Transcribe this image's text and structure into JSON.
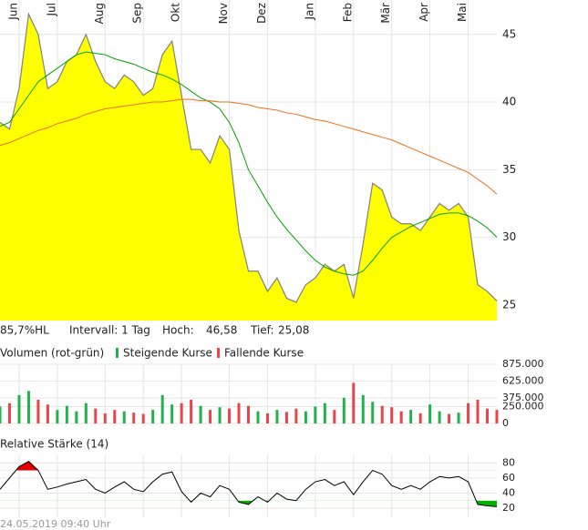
{
  "chart_data": [
    {
      "type": "area",
      "categories": [
        null,
        null,
        "Jun",
        null,
        null,
        null,
        "Jul",
        null,
        null,
        null,
        null,
        "Aug",
        null,
        null,
        null,
        "Sep",
        null,
        null,
        null,
        "Okt",
        null,
        null,
        null,
        null,
        "Nov",
        null,
        null,
        null,
        "Dez",
        null,
        null,
        null,
        null,
        "Jan",
        null,
        null,
        null,
        "Feb",
        null,
        null,
        null,
        "Mär",
        null,
        null,
        null,
        "Apr",
        null,
        null,
        null,
        "Mai",
        null,
        null,
        null
      ],
      "series": [
        {
          "color": "#ffff00",
          "edge_color": "#808080",
          "values": [
            38.5,
            38,
            41,
            46.5,
            45,
            41,
            41.5,
            43,
            43.5,
            45,
            43,
            41.5,
            41,
            42,
            41.5,
            40.5,
            41,
            43.5,
            44.5,
            40.5,
            36.5,
            36.5,
            35.5,
            37.5,
            36.5,
            30.5,
            27.5,
            27.5,
            26,
            27,
            25.5,
            25.2,
            26.5,
            27,
            28,
            27.5,
            28,
            25.5,
            29.5,
            34,
            33.5,
            31.5,
            31,
            31,
            30.5,
            31.5,
            32.5,
            32,
            32.5,
            31.5,
            26.5,
            26,
            25.3
          ]
        },
        {
          "color": "#00a000",
          "values": [
            38.2,
            38.5,
            39.5,
            40.5,
            41.5,
            42,
            42.5,
            43,
            43.5,
            43.7,
            43.6,
            43.5,
            43.2,
            43,
            42.8,
            42.5,
            42.2,
            42,
            41.7,
            41.3,
            40.8,
            40.3,
            40,
            39.5,
            38.5,
            37,
            35,
            33.8,
            32.6,
            31.5,
            30.6,
            29.8,
            29,
            28.3,
            27.8,
            27.5,
            27.3,
            27.2,
            27.5,
            28.3,
            29.2,
            30,
            30.4,
            30.8,
            31.1,
            31.4,
            31.7,
            31.8,
            31.8,
            31.6,
            31.2,
            30.7,
            30
          ]
        },
        {
          "color": "#e8701a",
          "values": [
            36.8,
            37,
            37.3,
            37.6,
            37.9,
            38.1,
            38.4,
            38.6,
            38.8,
            39.1,
            39.3,
            39.5,
            39.6,
            39.7,
            39.8,
            39.9,
            40,
            40,
            40.1,
            40.2,
            40.2,
            40.1,
            40.1,
            40,
            40,
            39.9,
            39.8,
            39.6,
            39.5,
            39.4,
            39.2,
            39.1,
            38.9,
            38.7,
            38.6,
            38.4,
            38.2,
            38,
            37.8,
            37.6,
            37.4,
            37.2,
            36.9,
            36.6,
            36.3,
            36,
            35.7,
            35.4,
            35.1,
            34.8,
            34.3,
            33.8,
            33.2
          ]
        }
      ],
      "ylim": [
        23.85,
        46.6
      ],
      "yticks": [
        25,
        30,
        35,
        40,
        45
      ],
      "grid": true,
      "annotations": [
        "85,7%HL",
        "Intervall: 1 Tag",
        "Hoch:",
        "46,58",
        "Tief:",
        "25,08"
      ]
    },
    {
      "type": "bar",
      "title": "Volumen (rot-grün)",
      "series": [
        {
          "name": "Steigende Kurse",
          "color": "#22b14c",
          "values": [
            250000,
            null,
            420000,
            480000,
            null,
            null,
            200000,
            260000,
            180000,
            300000,
            null,
            null,
            null,
            180000,
            null,
            null,
            200000,
            420000,
            280000,
            null,
            null,
            260000,
            null,
            240000,
            null,
            null,
            null,
            180000,
            null,
            200000,
            null,
            null,
            180000,
            250000,
            300000,
            null,
            380000,
            null,
            420000,
            320000,
            null,
            null,
            null,
            200000,
            null,
            280000,
            180000,
            null,
            160000,
            null,
            null,
            null,
            null
          ]
        },
        {
          "name": "Fallende Kurse",
          "color": "#e8454a",
          "values": [
            null,
            300000,
            null,
            null,
            350000,
            280000,
            null,
            null,
            null,
            null,
            220000,
            150000,
            200000,
            null,
            160000,
            140000,
            null,
            null,
            null,
            300000,
            350000,
            null,
            200000,
            null,
            220000,
            300000,
            260000,
            null,
            150000,
            null,
            170000,
            220000,
            null,
            null,
            null,
            200000,
            null,
            600000,
            null,
            null,
            260000,
            240000,
            180000,
            null,
            150000,
            null,
            null,
            140000,
            null,
            300000,
            350000,
            220000,
            200000
          ]
        }
      ],
      "ylim": [
        0,
        875000
      ],
      "yticks": [
        0,
        {
          "value": 250000,
          "label": "250.000"
        },
        {
          "value": 375000,
          "label": "375.000"
        },
        {
          "value": 625000,
          "label": "625.000"
        },
        {
          "value": 875000,
          "label": "875.000"
        }
      ],
      "grid": true
    },
    {
      "type": "line",
      "title": "Relative Stärke (14)",
      "series": [
        {
          "color": "#000000",
          "values": [
            45,
            60,
            75,
            82,
            70,
            45,
            48,
            52,
            55,
            58,
            45,
            40,
            48,
            55,
            45,
            42,
            55,
            65,
            68,
            42,
            28,
            40,
            35,
            50,
            45,
            28,
            25,
            35,
            28,
            40,
            32,
            30,
            45,
            55,
            58,
            50,
            55,
            38,
            55,
            70,
            65,
            50,
            45,
            50,
            45,
            55,
            62,
            60,
            62,
            55,
            25,
            23,
            22
          ]
        }
      ],
      "bands": [
        30,
        70
      ],
      "band_colors": [
        "#00b000",
        "#e00000"
      ],
      "ylim": [
        8,
        90
      ],
      "yticks": [
        20,
        40,
        60,
        80
      ],
      "grid": true
    }
  ],
  "footer": "24.05.2019 09:40 Uhr"
}
